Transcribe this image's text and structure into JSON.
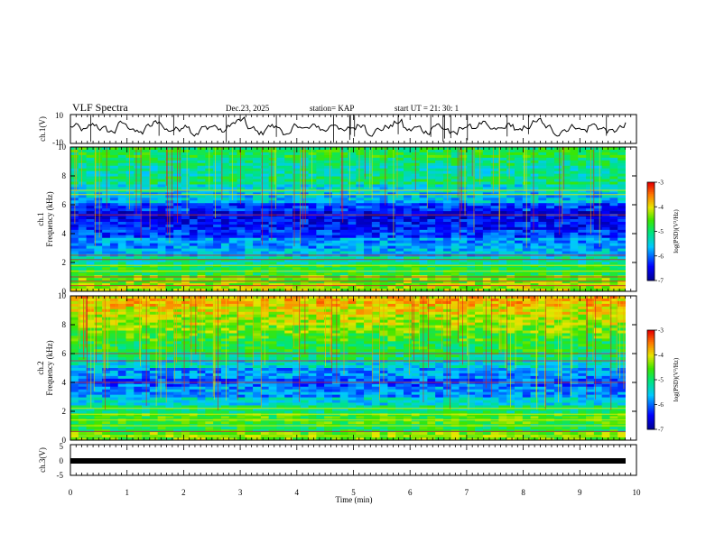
{
  "header": {
    "title": "VLF Spectra",
    "date": "Dec.23, 2025",
    "station": "station= KAP",
    "start_ut": "start  UT  =   21: 30: 1"
  },
  "chart_data": [
    {
      "type": "line",
      "name": "ch1-waveform",
      "ylabel": "ch.1(V)",
      "ylim": [
        -10,
        10
      ],
      "ytick_labels": [
        "10",
        "-10"
      ],
      "x_range_min": [
        0,
        9.8
      ],
      "description_values": "noisy waveform oscillating about ~0 V with amplitude up to ~±8 V",
      "y": [
        2,
        -1,
        3,
        0,
        -2,
        4,
        1,
        -3,
        2,
        5,
        -1,
        0,
        3,
        -4,
        1,
        2,
        -2,
        4,
        6,
        0,
        -3,
        2,
        1,
        -5,
        3,
        0,
        2,
        -1,
        4,
        -2,
        1,
        3,
        -3,
        0,
        2,
        5,
        -1,
        1,
        -2,
        3,
        0,
        -4,
        2,
        1,
        4,
        -1,
        0,
        3,
        -2,
        2,
        6,
        1,
        -3,
        0,
        2,
        -1,
        3,
        0,
        -2,
        1,
        4
      ]
    },
    {
      "type": "heatmap",
      "name": "ch1-spectrogram",
      "ylabel": "Frequency (kHz)",
      "channel_label": "ch.1",
      "ylim": [
        0,
        10
      ],
      "ytick_labels": [
        "0",
        "2",
        "4",
        "6",
        "8",
        "10"
      ],
      "colorbar": {
        "label": "log(PSD)(V²/Hz)",
        "range": [
          -7,
          -3
        ],
        "tick_labels": [
          "-3",
          "-4",
          "-5",
          "-6",
          "-7"
        ]
      },
      "band_levels_khz_from_top": [
        0.55,
        0.5,
        0.45,
        0.5,
        0.4,
        0.35,
        0.2,
        0.12,
        0.15,
        0.2,
        0.3,
        0.35,
        0.45,
        0.55,
        0.65,
        0.7,
        0.75
      ]
    },
    {
      "type": "heatmap",
      "name": "ch2-spectrogram",
      "ylabel": "Frequency (kHz)",
      "channel_label": "ch.2",
      "ylim": [
        0,
        10
      ],
      "ytick_labels": [
        "0",
        "2",
        "4",
        "6",
        "8",
        "10"
      ],
      "colorbar": {
        "label": "log(PSD)(V²/Hz)",
        "range": [
          -7,
          -3
        ],
        "tick_labels": [
          "-3",
          "-4",
          "-5",
          "-6",
          "-7"
        ]
      },
      "band_levels_khz_from_top": [
        0.8,
        0.75,
        0.7,
        0.65,
        0.6,
        0.55,
        0.5,
        0.4,
        0.3,
        0.25,
        0.3,
        0.4,
        0.5,
        0.6,
        0.55,
        0.65,
        0.7
      ]
    },
    {
      "type": "line",
      "name": "ch3-trace",
      "ylabel": "ch.3(V)",
      "ylim": [
        -5,
        5
      ],
      "ytick_labels": [
        "5",
        "0",
        "-5"
      ],
      "description_values": "flat trace at ~0 V across the whole interval"
    }
  ],
  "xaxis": {
    "label": "Time  (min)",
    "range": [
      0,
      10
    ],
    "tick_labels": [
      "0",
      "1",
      "2",
      "3",
      "4",
      "5",
      "6",
      "7",
      "8",
      "9",
      "10"
    ]
  }
}
